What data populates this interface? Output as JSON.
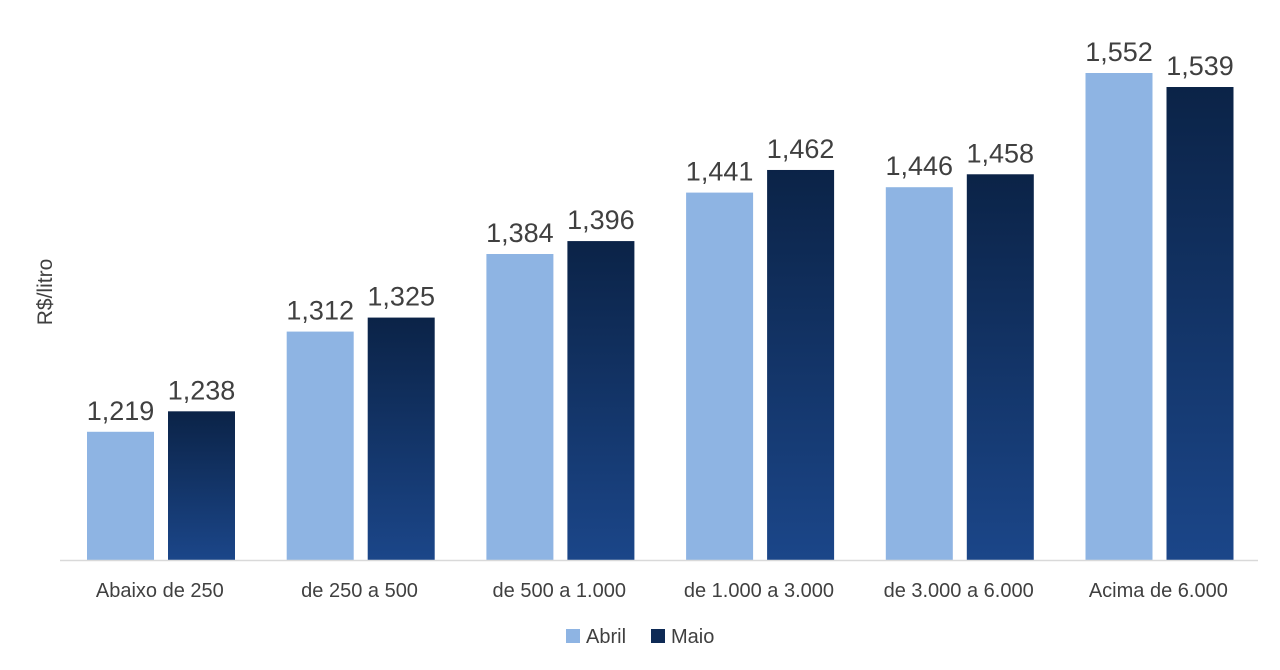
{
  "chart_data": {
    "type": "bar",
    "title": "",
    "xlabel": "",
    "ylabel": "R$/litro",
    "ylim": [
      1.1,
      1.6
    ],
    "grid": false,
    "legend_position": "bottom",
    "categories": [
      "Abaixo de 250",
      "de 250 a 500",
      "de 500 a 1.000",
      "de 1.000 a 3.000",
      "de 3.000 a 6.000",
      "Acima de 6.000"
    ],
    "series": [
      {
        "name": "Abril",
        "color": "#8eb4e3",
        "values": [
          1.219,
          1.312,
          1.384,
          1.441,
          1.446,
          1.552
        ],
        "labels": [
          "1,219",
          "1,312",
          "1,384",
          "1,441",
          "1,446",
          "1,552"
        ]
      },
      {
        "name": "Maio",
        "color": "#0e2a55",
        "color_bottom": "#1b4689",
        "values": [
          1.238,
          1.325,
          1.396,
          1.462,
          1.458,
          1.539
        ],
        "labels": [
          "1,238",
          "1,325",
          "1,396",
          "1,462",
          "1,458",
          "1,539"
        ]
      }
    ]
  }
}
